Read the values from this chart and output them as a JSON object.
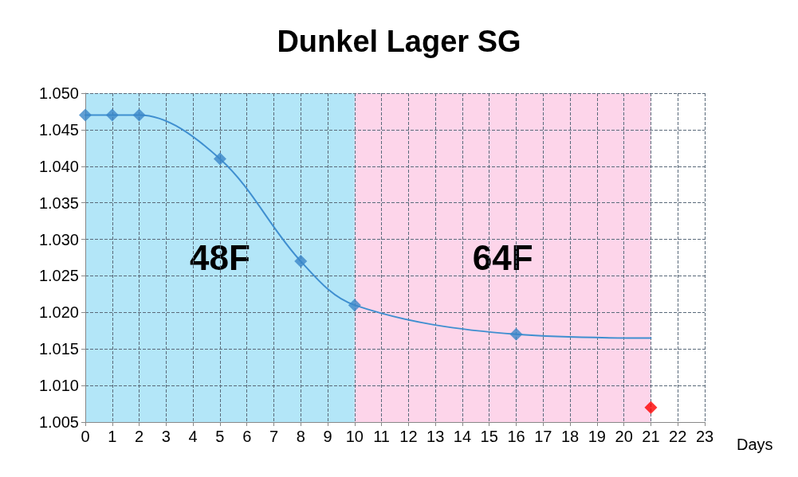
{
  "chart_data": {
    "type": "line",
    "title": "Dunkel Lager SG",
    "xlabel": "Days",
    "xlim": [
      0,
      23
    ],
    "xticks": [
      0,
      1,
      2,
      3,
      4,
      5,
      6,
      7,
      8,
      9,
      10,
      11,
      12,
      13,
      14,
      15,
      16,
      17,
      18,
      19,
      20,
      21,
      22,
      23
    ],
    "ylim": [
      1.005,
      1.05
    ],
    "yticks": [
      {
        "value": 1.005,
        "label": "1.005"
      },
      {
        "value": 1.01,
        "label": "1.010"
      },
      {
        "value": 1.015,
        "label": "1.015"
      },
      {
        "value": 1.02,
        "label": "1.020"
      },
      {
        "value": 1.025,
        "label": "1.025"
      },
      {
        "value": 1.03,
        "label": "1.030"
      },
      {
        "value": 1.035,
        "label": "1.035"
      },
      {
        "value": 1.04,
        "label": "1.040"
      },
      {
        "value": 1.045,
        "label": "1.045"
      },
      {
        "value": 1.05,
        "label": "1.050"
      }
    ],
    "grid": true,
    "bands": [
      {
        "axis": "x",
        "from": 0,
        "to": 10,
        "label": "48F",
        "color": "#b3e6f8"
      },
      {
        "axis": "x",
        "from": 10,
        "to": 21,
        "label": "64F",
        "color": "#fdd5ea"
      }
    ],
    "series": [
      {
        "type": "line",
        "color": "#3f8fd0",
        "marker": "none",
        "x": [
          0,
          1,
          2,
          5,
          8,
          10,
          16,
          21
        ],
        "values": [
          1.047,
          1.047,
          1.047,
          1.041,
          1.027,
          1.021,
          1.017,
          1.0165
        ]
      },
      {
        "type": "scatter",
        "color": "#3a86c8",
        "marker": "diamond",
        "x": [
          0,
          1,
          2,
          5,
          8,
          10,
          16
        ],
        "values": [
          1.047,
          1.047,
          1.047,
          1.041,
          1.027,
          1.021,
          1.017
        ]
      },
      {
        "type": "scatter",
        "color": "#ff0000",
        "marker": "diamond",
        "x": [
          21
        ],
        "values": [
          1.007
        ]
      }
    ]
  }
}
